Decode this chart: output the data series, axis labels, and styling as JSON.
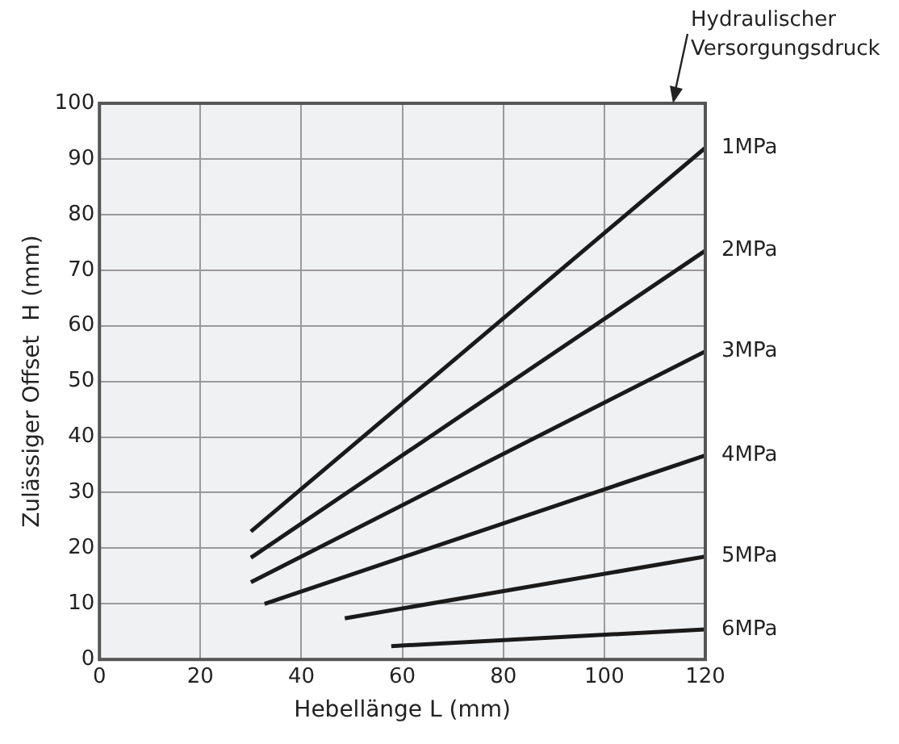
{
  "chart_data": {
    "type": "line",
    "xlabel": "Hebellänge L (mm)",
    "ylabel": "Zulässiger Offset  H (mm)",
    "legend_title": "Hydraulischer Versorgungsdruck",
    "xlim": [
      0,
      120
    ],
    "xticks": [
      0,
      20,
      40,
      60,
      80,
      100,
      120
    ],
    "ylim": [
      0,
      100
    ],
    "yticks": [
      0,
      10,
      20,
      30,
      40,
      50,
      60,
      70,
      80,
      90,
      100
    ],
    "grid": true,
    "legend": false,
    "marker": "none",
    "line_style": "solid",
    "series": [
      {
        "name": "1MPa",
        "color": "#1a1a1a",
        "x": [
          30,
          120
        ],
        "values": [
          23,
          92
        ]
      },
      {
        "name": "2MPa",
        "color": "#1a1a1a",
        "x": [
          30,
          120
        ],
        "values": [
          18.3,
          73.5
        ]
      },
      {
        "name": "3MPa",
        "color": "#1a1a1a",
        "x": [
          30,
          120
        ],
        "values": [
          13.9,
          55.4
        ]
      },
      {
        "name": "4MPa",
        "color": "#1a1a1a",
        "x": [
          32.7,
          120
        ],
        "values": [
          10,
          36.7
        ]
      },
      {
        "name": "5MPa",
        "color": "#1a1a1a",
        "x": [
          48.6,
          120
        ],
        "values": [
          7.4,
          18.5
        ]
      },
      {
        "name": "6MPa",
        "color": "#1a1a1a",
        "x": [
          57.8,
          120
        ],
        "values": [
          2.4,
          5.4
        ]
      }
    ]
  }
}
